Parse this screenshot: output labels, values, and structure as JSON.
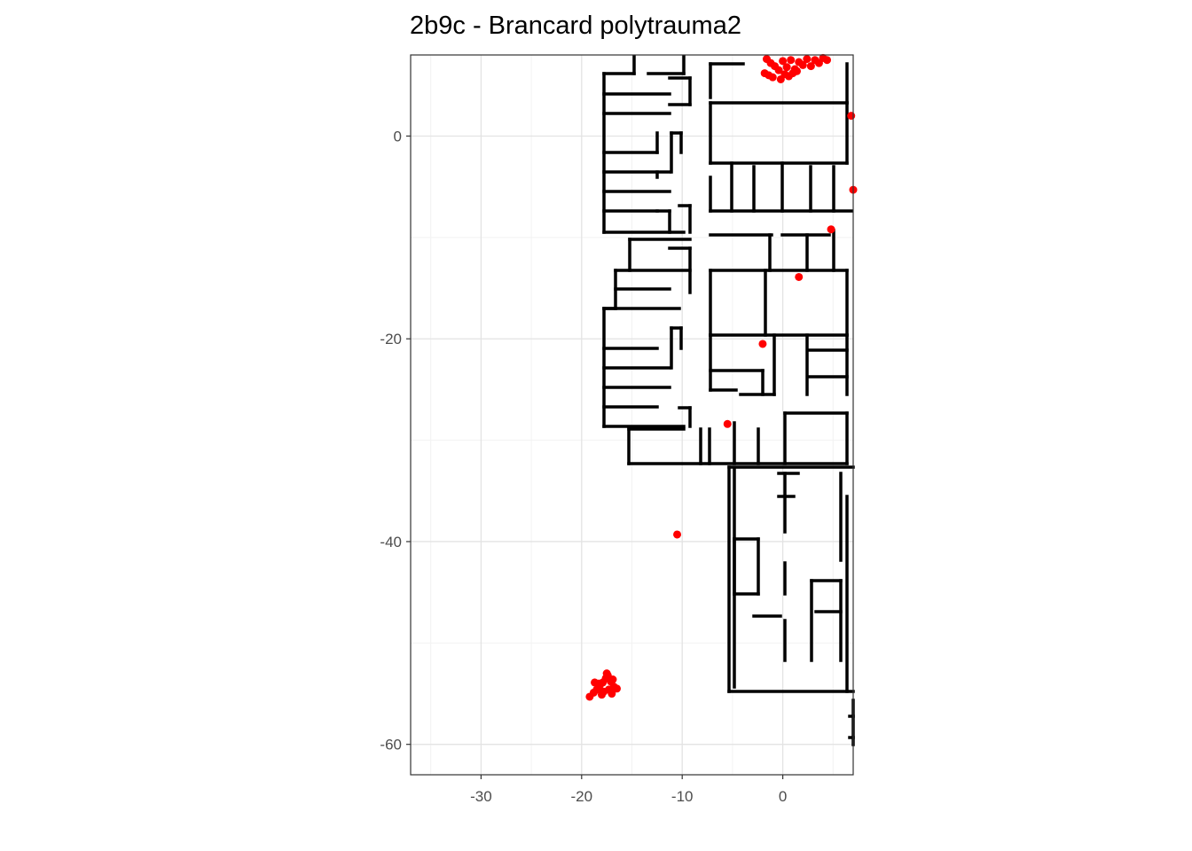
{
  "chart_data": {
    "type": "scatter",
    "title": "2b9c - Brancard polytrauma2",
    "xlabel": "",
    "ylabel": "",
    "xlim": [
      -37,
      7
    ],
    "ylim": [
      -63,
      8
    ],
    "x_ticks": [
      -30,
      -20,
      -10,
      0
    ],
    "y_ticks": [
      0,
      -20,
      -40,
      -60
    ],
    "grid": true,
    "background": "floor plan walls (black lines)",
    "point_color": "#ff0000",
    "wall_color": "#000000",
    "series": [
      {
        "points": [
          [
            -1.6,
            7.6
          ],
          [
            -1.2,
            7.2
          ],
          [
            -0.8,
            6.9
          ],
          [
            -0.4,
            6.5
          ],
          [
            0.0,
            7.4
          ],
          [
            0.4,
            6.8
          ],
          [
            0.8,
            7.5
          ],
          [
            1.2,
            6.6
          ],
          [
            1.6,
            7.3
          ],
          [
            2.0,
            7.0
          ],
          [
            2.4,
            7.6
          ],
          [
            2.8,
            6.9
          ],
          [
            3.2,
            7.5
          ],
          [
            3.6,
            7.2
          ],
          [
            4.0,
            7.7
          ],
          [
            4.4,
            7.5
          ],
          [
            -1.8,
            6.2
          ],
          [
            -1.0,
            5.8
          ],
          [
            -0.2,
            5.6
          ],
          [
            0.6,
            5.9
          ],
          [
            1.0,
            6.2
          ],
          [
            -1.4,
            6.0
          ],
          [
            0.2,
            6.1
          ],
          [
            1.4,
            6.4
          ],
          [
            6.8,
            2.0
          ],
          [
            7.0,
            -5.3
          ],
          [
            4.8,
            -9.2
          ],
          [
            1.6,
            -13.9
          ],
          [
            -2.0,
            -20.5
          ],
          [
            -5.5,
            -28.4
          ],
          [
            -10.5,
            -39.3
          ],
          [
            -19.2,
            -55.3
          ],
          [
            -18.8,
            -54.9
          ],
          [
            -18.5,
            -54.6
          ],
          [
            -18.2,
            -54.2
          ],
          [
            -17.9,
            -53.9
          ],
          [
            -17.6,
            -53.5
          ],
          [
            -17.4,
            -53.2
          ],
          [
            -17.1,
            -53.8
          ],
          [
            -16.8,
            -54.3
          ],
          [
            -17.3,
            -54.6
          ],
          [
            -17.8,
            -54.8
          ],
          [
            -18.3,
            -54.0
          ],
          [
            -18.7,
            -53.9
          ],
          [
            -17.0,
            -55.0
          ],
          [
            -16.5,
            -54.5
          ],
          [
            -17.5,
            -53.0
          ],
          [
            -18.0,
            -55.1
          ],
          [
            -16.9,
            -53.6
          ]
        ]
      }
    ]
  }
}
